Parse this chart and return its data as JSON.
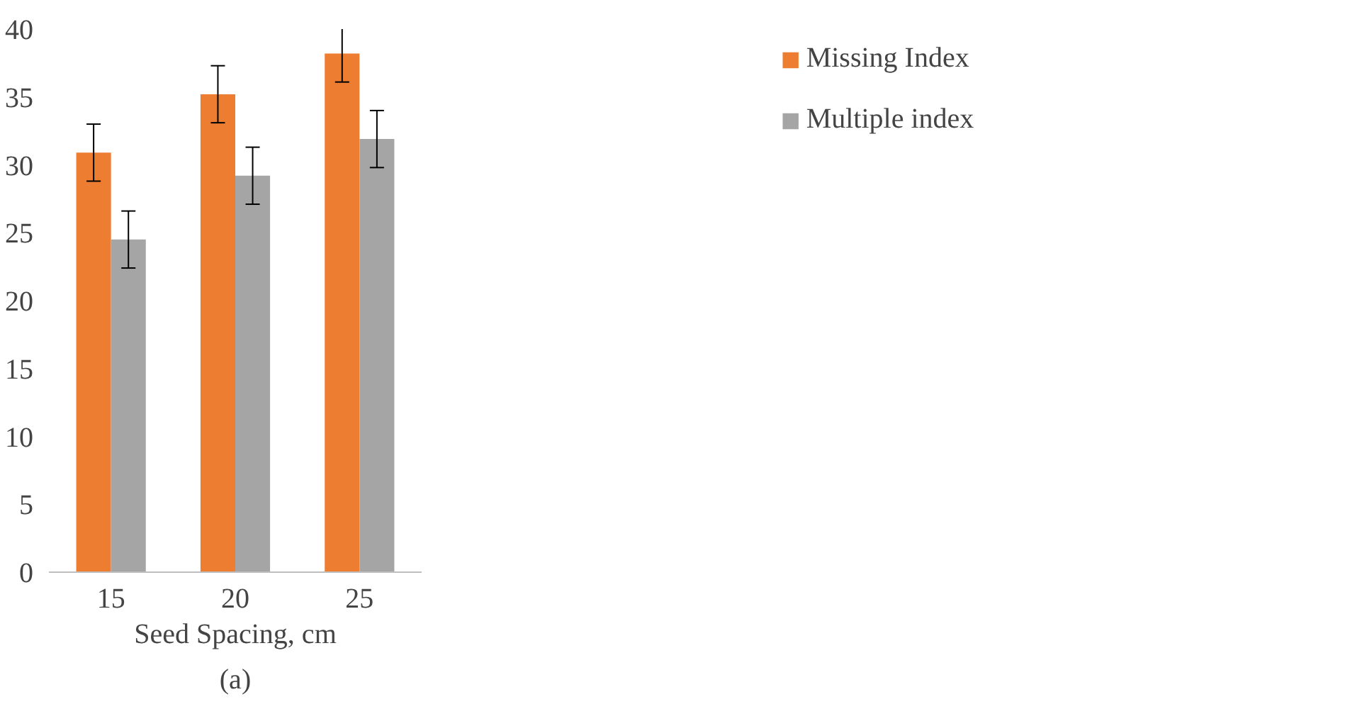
{
  "chart_data": {
    "type": "bar",
    "xlabel": "Seed Spacing, cm",
    "categories": [
      "15",
      "20",
      "25"
    ],
    "series": [
      {
        "name": "Missing Index",
        "color": "#ed7d31",
        "values": [
          30.9,
          35.2,
          38.2
        ],
        "errors": [
          2.1,
          2.1,
          2.1
        ]
      },
      {
        "name": "Multiple index",
        "color": "#a5a5a5",
        "values": [
          24.5,
          29.2,
          31.9
        ],
        "errors": [
          2.1,
          2.1,
          2.1
        ]
      }
    ],
    "ylim": [
      0,
      40
    ],
    "yticks": [
      0,
      5,
      10,
      15,
      20,
      25,
      30,
      35,
      40
    ],
    "grid": false,
    "legend": "top right",
    "annotations": [
      "(a)"
    ]
  }
}
